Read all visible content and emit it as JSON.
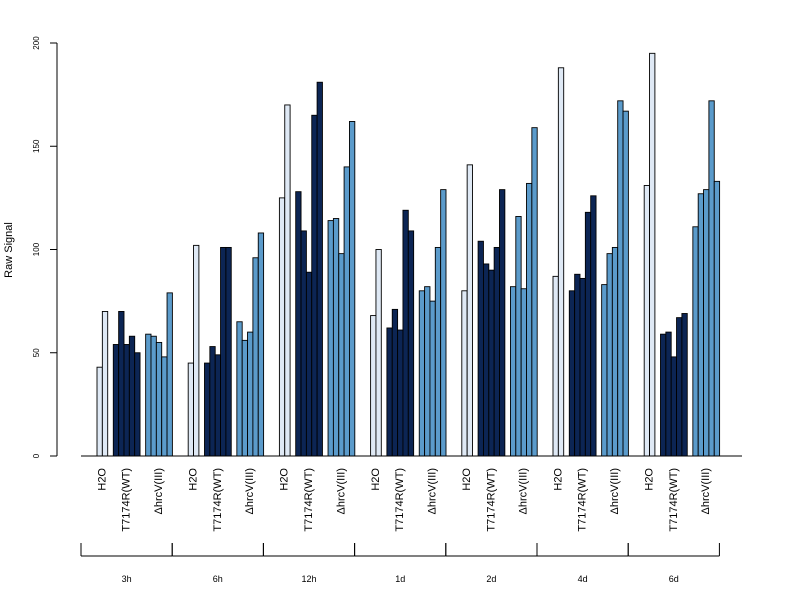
{
  "chart_data": {
    "type": "bar",
    "ylabel": "Raw Signal",
    "ylim": [
      0,
      200
    ],
    "yticks": [
      0,
      50,
      100,
      150,
      200
    ],
    "timepoints": [
      "3h",
      "6h",
      "12h",
      "1d",
      "2d",
      "4d",
      "6d"
    ],
    "conditions": [
      "H2O",
      "T7174R(WT)",
      "ΔhrcV(III)"
    ],
    "condition_colors": {
      "H2O": "#dfe9f5",
      "T7174R(WT)": "#0c2554",
      "ΔhrcV(III)": "#5b9bcb"
    },
    "values": {
      "3h": {
        "H2O": [
          43,
          70
        ],
        "T7174R(WT)": [
          54,
          70,
          54,
          58,
          50
        ],
        "ΔhrcV(III)": [
          59,
          58,
          55,
          48,
          79
        ]
      },
      "6h": {
        "H2O": [
          45,
          102
        ],
        "T7174R(WT)": [
          45,
          53,
          49,
          101,
          101
        ],
        "ΔhrcV(III)": [
          65,
          56,
          60,
          96,
          108
        ]
      },
      "12h": {
        "H2O": [
          125,
          170
        ],
        "T7174R(WT)": [
          128,
          109,
          89,
          165,
          181
        ],
        "ΔhrcV(III)": [
          114,
          115,
          98,
          140,
          162
        ]
      },
      "1d": {
        "H2O": [
          68,
          100
        ],
        "T7174R(WT)": [
          62,
          71,
          61,
          119,
          109
        ],
        "ΔhrcV(III)": [
          80,
          82,
          75,
          101,
          129
        ]
      },
      "2d": {
        "H2O": [
          80,
          141
        ],
        "T7174R(WT)": [
          104,
          93,
          90,
          101,
          129
        ],
        "ΔhrcV(III)": [
          82,
          116,
          81,
          132,
          159
        ]
      },
      "4d": {
        "H2O": [
          87,
          188
        ],
        "T7174R(WT)": [
          80,
          88,
          86,
          118,
          126
        ],
        "ΔhrcV(III)": [
          83,
          98,
          101,
          172,
          167
        ]
      },
      "6d": {
        "H2O": [
          131,
          195
        ],
        "T7174R(WT)": [
          59,
          60,
          48,
          67,
          69
        ],
        "ΔhrcV(III)": [
          111,
          127,
          129,
          172,
          133
        ]
      }
    },
    "grid": false,
    "legend": "none"
  }
}
